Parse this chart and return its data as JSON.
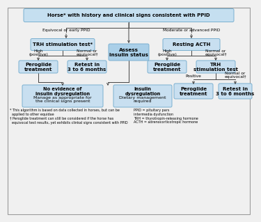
{
  "bg_color": "#f0f0f0",
  "box_fill": "#c8dff0",
  "box_edge": "#7ab0d0",
  "arrow_color": "#444444",
  "title": "Horse* with history and clinical signs consistent with PPID",
  "title_fill": "#c5dff0",
  "footnote1": "* This algorithm is based on data collected in horses, but can be\n  applied to other equidae",
  "footnote2": "† Peroglide treatment can still be considered if the horse has\n  equivocal test results, yet exhibits clinkal signs consistent with PPID",
  "footnote3": "PPID = pituitary pars\nintermedia dysfunction\nTRH = thyrotropin-releasing hormone\nACTH = adrenocorticotropic hormone",
  "label_equivocal": "Equivocal or early PPID",
  "label_moderate": "Moderate or advanced PPID",
  "box_TRH": "TRH stimulation test*",
  "box_resting": "Resting ACTH",
  "box_insulin": "Assess\ninsulin status",
  "label_high1": "High\n(positive)",
  "label_normal1": "Normal or\nequivocal†",
  "label_high2": "High\n(positive)",
  "label_normal2": "Normal or\nequivocal†",
  "box_peroglide1": "Peroglide\ntreatment",
  "box_retest1": "Retest in\n3 to 6 months",
  "box_peroglide2": "Peroglide\ntreatment",
  "box_TRH2": "TRH\nstimulation test",
  "label_positive": "Positive",
  "label_normalequiv": "Normal or\nequivocal†",
  "box_no_evidence_bold": "No evidence of\ninsulin dysregulation",
  "box_no_evidence_normal": "Manage as appropriate for\nthe clinical signs present",
  "box_insulin_dysreg_bold": "Insulin\ndysregulation",
  "box_insulin_dysreg_normal": "Dietary management\nrequired",
  "box_peroglide3": "Peroglide\ntreatment",
  "box_retest2": "Retest in\n3 to 6 months"
}
